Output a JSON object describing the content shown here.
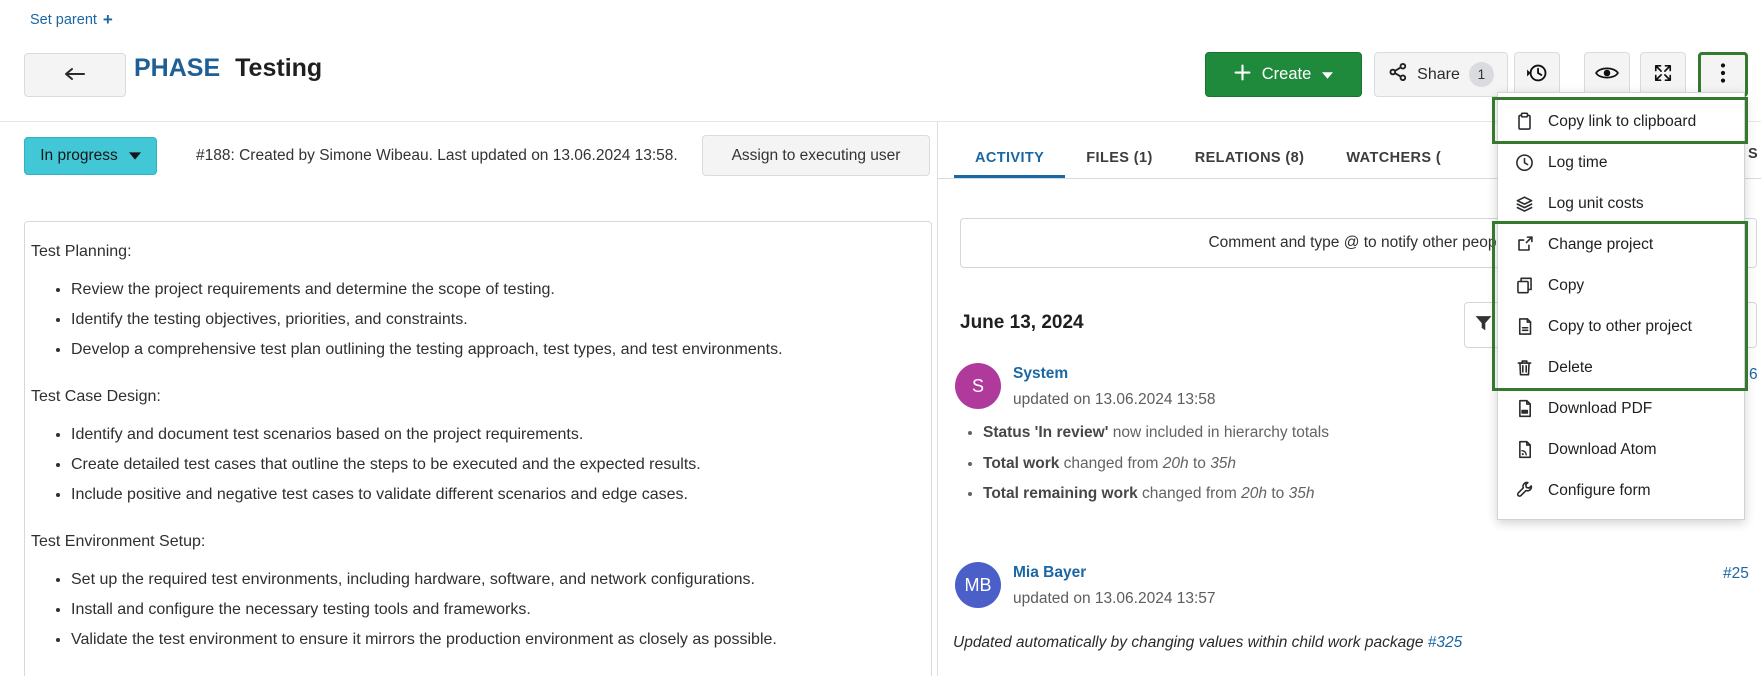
{
  "colors": {
    "link_blue": "#1a67a3",
    "create_green": "#1f8a3b",
    "highlight_green": "#35792e",
    "status_teal": "#41c7d6",
    "type_blue": "#1e5f96",
    "system_avatar": "#b03a9c",
    "mia_avatar": "#4a5fc8"
  },
  "top": {
    "set_parent_label": "Set parent",
    "type_label": "PHASE",
    "subject": "Testing",
    "create_label": "Create",
    "share_label": "Share",
    "share_count": "1"
  },
  "status_row": {
    "status_label": "In progress",
    "meta_text": "#188: Created by Simone Wibeau. Last updated on 13.06.2024 13:58.",
    "assign_button_label": "Assign to executing user"
  },
  "tabs": {
    "items": [
      {
        "label": "ACTIVITY",
        "active": true
      },
      {
        "label": "FILES (1)",
        "active": false
      },
      {
        "label": "RELATIONS (8)",
        "active": false
      },
      {
        "label": "WATCHERS (",
        "active": false
      }
    ],
    "partial_right_label": "S"
  },
  "description": {
    "sections": [
      {
        "heading": "Test Planning:",
        "bullets": [
          "Review the project requirements and determine the scope of testing.",
          "Identify the testing objectives, priorities, and constraints.",
          "Develop a comprehensive test plan outlining the testing approach, test types, and test environments."
        ]
      },
      {
        "heading": "Test Case Design:",
        "bullets": [
          "Identify and document test scenarios based on the project requirements.",
          "Create detailed test cases that outline the steps to be executed and the expected results.",
          "Include positive and negative test cases to validate different scenarios and edge cases."
        ]
      },
      {
        "heading": "Test Environment Setup:",
        "bullets": [
          "Set up the required test environments, including hardware, software, and network configurations.",
          "Install and configure the necessary testing tools and frameworks.",
          "Validate the test environment to ensure it mirrors the production environment as closely as possible."
        ]
      }
    ]
  },
  "activity": {
    "comment_placeholder": "Comment and type @ to notify other people",
    "date_heading": "June 13, 2024",
    "entries": [
      {
        "initials": "S",
        "avatar_color": "#b03a9c",
        "name": "System",
        "meta": "updated on 13.06.2024 13:58",
        "partial_side_link": "6",
        "changes": [
          [
            {
              "t": "Status 'In review'",
              "b": true
            },
            {
              "t": " now included in hierarchy totals"
            }
          ],
          [
            {
              "t": "Total work",
              "b": true
            },
            {
              "t": " changed from "
            },
            {
              "t": "20h",
              "i": true
            },
            {
              "t": " to "
            },
            {
              "t": "35h",
              "i": true
            }
          ],
          [
            {
              "t": "Total remaining work",
              "b": true
            },
            {
              "t": " changed from "
            },
            {
              "t": "20h",
              "i": true
            },
            {
              "t": " to "
            },
            {
              "t": "35h",
              "i": true
            }
          ]
        ]
      },
      {
        "initials": "MB",
        "avatar_color": "#4a5fc8",
        "name": "Mia Bayer",
        "meta": "updated on 13.06.2024 13:57",
        "side_link": "#25",
        "note": [
          {
            "t": "Updated automatically by changing values within child work package ",
            "i": true
          },
          {
            "t": "#325",
            "i": true,
            "link": true
          }
        ]
      }
    ]
  },
  "menu": {
    "items": [
      {
        "label": "Copy link to clipboard",
        "icon": "clipboard-icon",
        "highlighted": true
      },
      {
        "label": "Log time",
        "icon": "clock-icon",
        "highlighted": false
      },
      {
        "label": "Log unit costs",
        "icon": "layers-icon",
        "highlighted": false
      },
      {
        "label": "Change project",
        "icon": "change-project-icon",
        "highlighted": true
      },
      {
        "label": "Copy",
        "icon": "copy-icon",
        "highlighted": true
      },
      {
        "label": "Copy to other project",
        "icon": "copy-to-project-icon",
        "highlighted": true
      },
      {
        "label": "Delete",
        "icon": "trash-icon",
        "highlighted": true
      },
      {
        "label": "Download PDF",
        "icon": "pdf-file-icon",
        "highlighted": false
      },
      {
        "label": "Download Atom",
        "icon": "atom-file-icon",
        "highlighted": false
      },
      {
        "label": "Configure form",
        "icon": "wrench-icon",
        "highlighted": false
      }
    ]
  }
}
